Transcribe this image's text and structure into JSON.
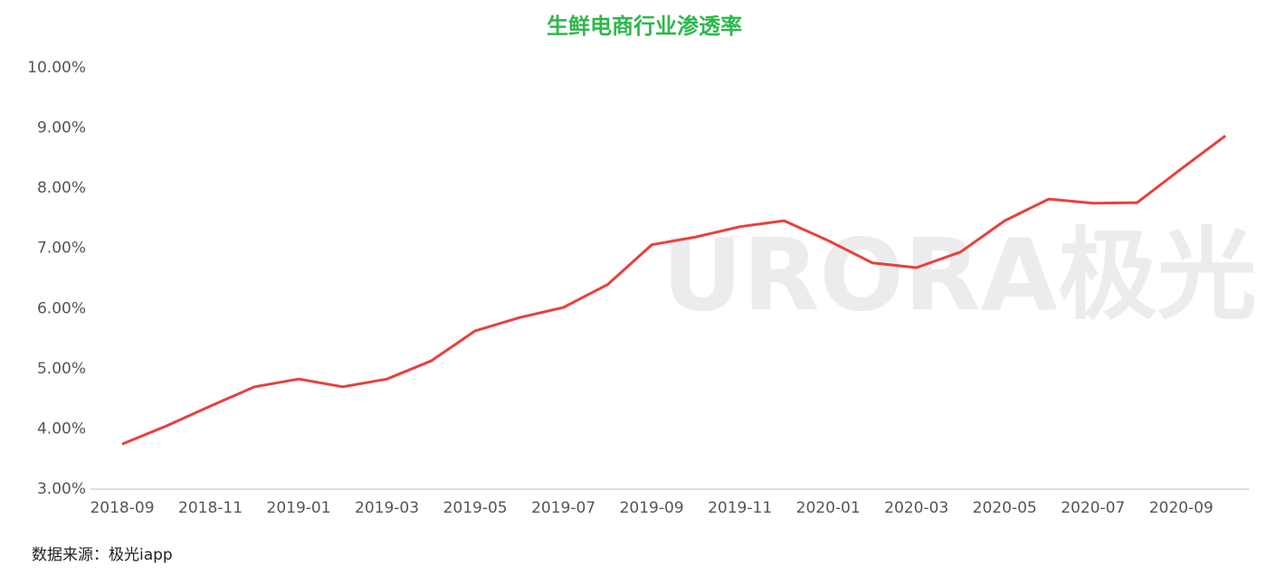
{
  "chart_data": {
    "type": "line",
    "title": "生鲜电商行业渗透率",
    "watermark": "URORA极光",
    "source": "数据来源：极光iapp",
    "categories": [
      "2018-09",
      null,
      "2018-11",
      null,
      "2019-01",
      null,
      "2019-03",
      null,
      "2019-05",
      null,
      "2019-07",
      null,
      "2019-09",
      null,
      "2019-11",
      null,
      "2020-01",
      null,
      "2020-03",
      null,
      "2020-05",
      null,
      "2020-07",
      null,
      "2020-09",
      null
    ],
    "values": [
      3.75,
      4.05,
      4.38,
      4.7,
      4.83,
      4.7,
      4.83,
      5.13,
      5.63,
      5.85,
      6.02,
      6.4,
      7.06,
      7.19,
      7.36,
      7.46,
      7.13,
      6.76,
      6.68,
      6.94,
      7.46,
      7.82,
      7.75,
      7.76,
      8.32,
      8.87
    ],
    "color": "#e8403d",
    "ylim": [
      3,
      10
    ],
    "yticks": [
      {
        "value": 3,
        "label": "3.00%"
      },
      {
        "value": 4,
        "label": "4.00%"
      },
      {
        "value": 5,
        "label": "5.00%"
      },
      {
        "value": 6,
        "label": "6.00%"
      },
      {
        "value": 7,
        "label": "7.00%"
      },
      {
        "value": 8,
        "label": "8.00%"
      },
      {
        "value": 9,
        "label": "9.00%"
      },
      {
        "value": 10,
        "label": "10.00%"
      }
    ],
    "grid": false
  }
}
